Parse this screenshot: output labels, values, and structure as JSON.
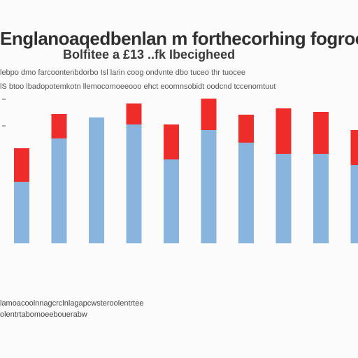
{
  "chart_data": {
    "type": "bar",
    "stacked": true,
    "title": "Englanoaqedbenlan m forthecorhing fogroo FOS",
    "subtitle": "Bolfitee a £13 ..fk Ibecigheed",
    "notes": [
      "lebpo dmo farcoontenbdorbo Isl larin coog ondvnte dbo tuceo thr tuocee",
      "lS btoo lbadopotemkotn llemocomoeeooo ehct eoomnsobidt oodcnd tccenomtuut"
    ],
    "footer_lines": [
      "lamoacoolnnagcrclnlagapcwsteroolentrtee",
      "olentrtabomoeebouerabw"
    ],
    "categories": [
      "",
      "",
      "",
      "",
      "",
      "",
      "",
      "",
      "",
      ""
    ],
    "category_ids": [
      "",
      "",
      "",
      "",
      "",
      "",
      "",
      "",
      "",
      ""
    ],
    "series": [
      {
        "color": "#88b4dd",
        "values": [
          88,
          150,
          180,
          170,
          120,
          162,
          144,
          128,
          128,
          112
        ]
      },
      {
        "color": "#ee2d2a",
        "values": [
          48,
          35,
          0,
          30,
          50,
          45,
          40,
          65,
          60,
          50
        ]
      }
    ],
    "ylim": [
      0,
      210
    ],
    "grid": false,
    "legend": "none"
  }
}
